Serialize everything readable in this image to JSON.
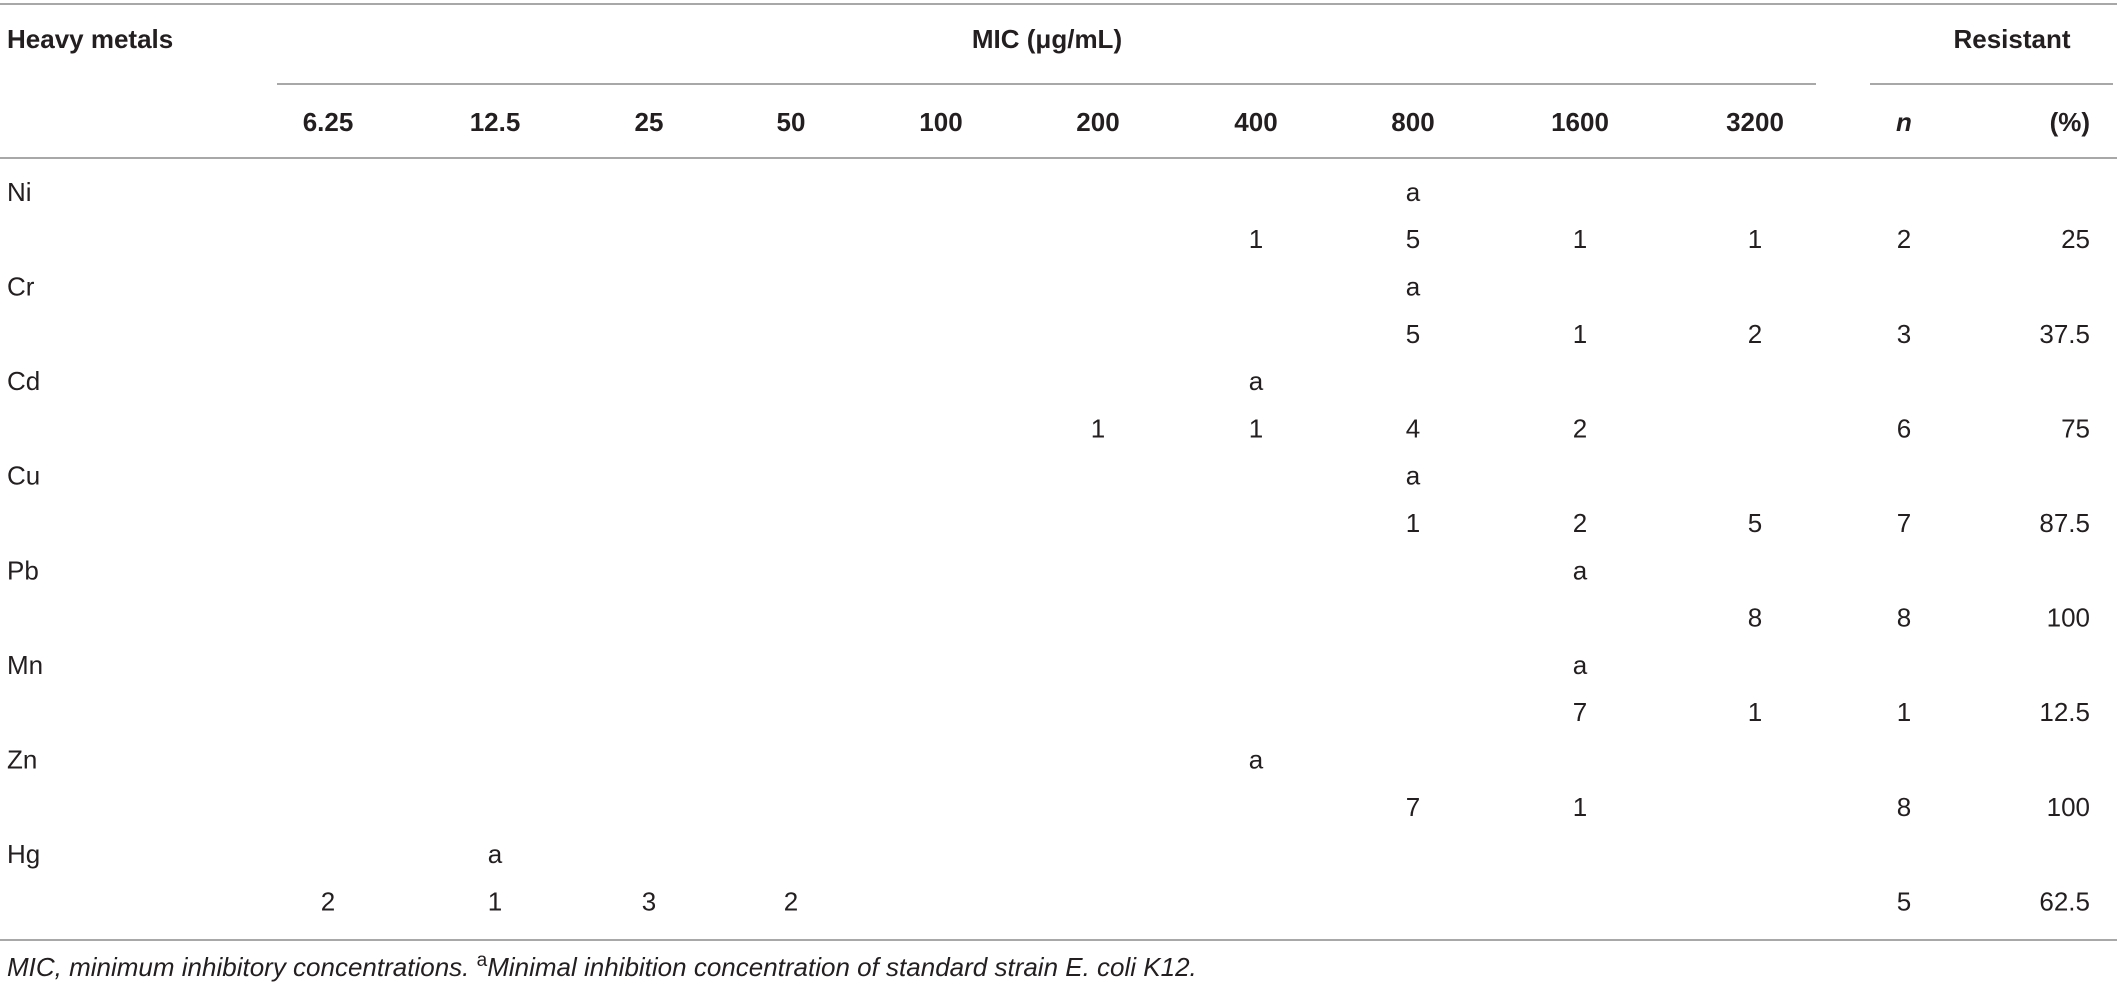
{
  "table": {
    "header": {
      "metal": "Heavy metals",
      "mic": "MIC (μg/mL)",
      "resistant": "Resistant",
      "concentrations": [
        6.25,
        12.5,
        25,
        50,
        100,
        200,
        400,
        800,
        1600,
        3200
      ],
      "n": "n",
      "percent": "(%)"
    },
    "rows": [
      {
        "metal": "Ni",
        "marker": [
          null,
          null,
          null,
          null,
          null,
          null,
          null,
          "a",
          null,
          null
        ],
        "counts": [
          null,
          null,
          null,
          null,
          null,
          null,
          1,
          5,
          1,
          1
        ],
        "n": 2,
        "percent": 25
      },
      {
        "metal": "Cr",
        "marker": [
          null,
          null,
          null,
          null,
          null,
          null,
          null,
          "a",
          null,
          null
        ],
        "counts": [
          null,
          null,
          null,
          null,
          null,
          null,
          null,
          5,
          1,
          2
        ],
        "n": 3,
        "percent": 37.5
      },
      {
        "metal": "Cd",
        "marker": [
          null,
          null,
          null,
          null,
          null,
          null,
          "a",
          null,
          null,
          null
        ],
        "counts": [
          null,
          null,
          null,
          null,
          null,
          1,
          1,
          4,
          2,
          null
        ],
        "n": 6,
        "percent": 75
      },
      {
        "metal": "Cu",
        "marker": [
          null,
          null,
          null,
          null,
          null,
          null,
          null,
          "a",
          null,
          null
        ],
        "counts": [
          null,
          null,
          null,
          null,
          null,
          null,
          null,
          1,
          2,
          5
        ],
        "n": 7,
        "percent": 87.5
      },
      {
        "metal": "Pb",
        "marker": [
          null,
          null,
          null,
          null,
          null,
          null,
          null,
          null,
          "a",
          null
        ],
        "counts": [
          null,
          null,
          null,
          null,
          null,
          null,
          null,
          null,
          null,
          8
        ],
        "n": 8,
        "percent": 100
      },
      {
        "metal": "Mn",
        "marker": [
          null,
          null,
          null,
          null,
          null,
          null,
          null,
          null,
          "a",
          null
        ],
        "counts": [
          null,
          null,
          null,
          null,
          null,
          null,
          null,
          null,
          7,
          1
        ],
        "n": 1,
        "percent": 12.5
      },
      {
        "metal": "Zn",
        "marker": [
          null,
          null,
          null,
          null,
          null,
          null,
          "a",
          null,
          null,
          null
        ],
        "counts": [
          null,
          null,
          null,
          null,
          null,
          null,
          null,
          7,
          1,
          null
        ],
        "n": 8,
        "percent": 100
      },
      {
        "metal": "Hg",
        "marker": [
          null,
          "a",
          null,
          null,
          null,
          null,
          null,
          null,
          null,
          null
        ],
        "counts": [
          2,
          1,
          3,
          2,
          null,
          null,
          null,
          null,
          null,
          null
        ],
        "n": 5,
        "percent": 62.5
      }
    ]
  },
  "footnote": {
    "text1": "MIC, minimum inhibitory concentrations. ",
    "marker": "a",
    "text2": "Minimal inhibition concentration of standard strain E. coli K12."
  }
}
